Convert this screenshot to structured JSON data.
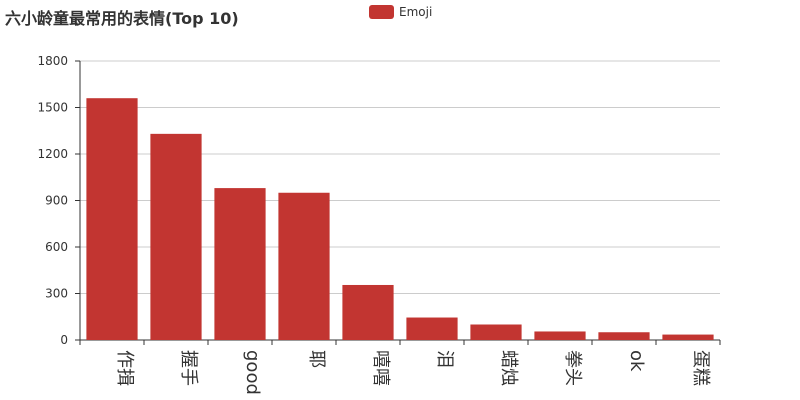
{
  "colors": {
    "series": "#c23531",
    "axis": "#333333",
    "grid": "#cccccc",
    "text": "#333333"
  },
  "chart_data": {
    "type": "bar",
    "title": "六小龄童最常用的表情(Top 10)",
    "xlabel": "",
    "ylabel": "",
    "categories": [
      "作揖",
      "握手",
      "good",
      "耶",
      "嘻嘻",
      "泪",
      "蜡烛",
      "拳头",
      "ok",
      "蛋糕"
    ],
    "series": [
      {
        "name": "Emoji",
        "values": [
          1560,
          1330,
          980,
          950,
          355,
          145,
          100,
          55,
          50,
          35
        ]
      }
    ],
    "ylim": [
      0,
      1800
    ],
    "yticks": [
      "0",
      "300",
      "600",
      "900",
      "1200",
      "1500",
      "1800"
    ],
    "grid": true,
    "legend_position": "top-center"
  }
}
